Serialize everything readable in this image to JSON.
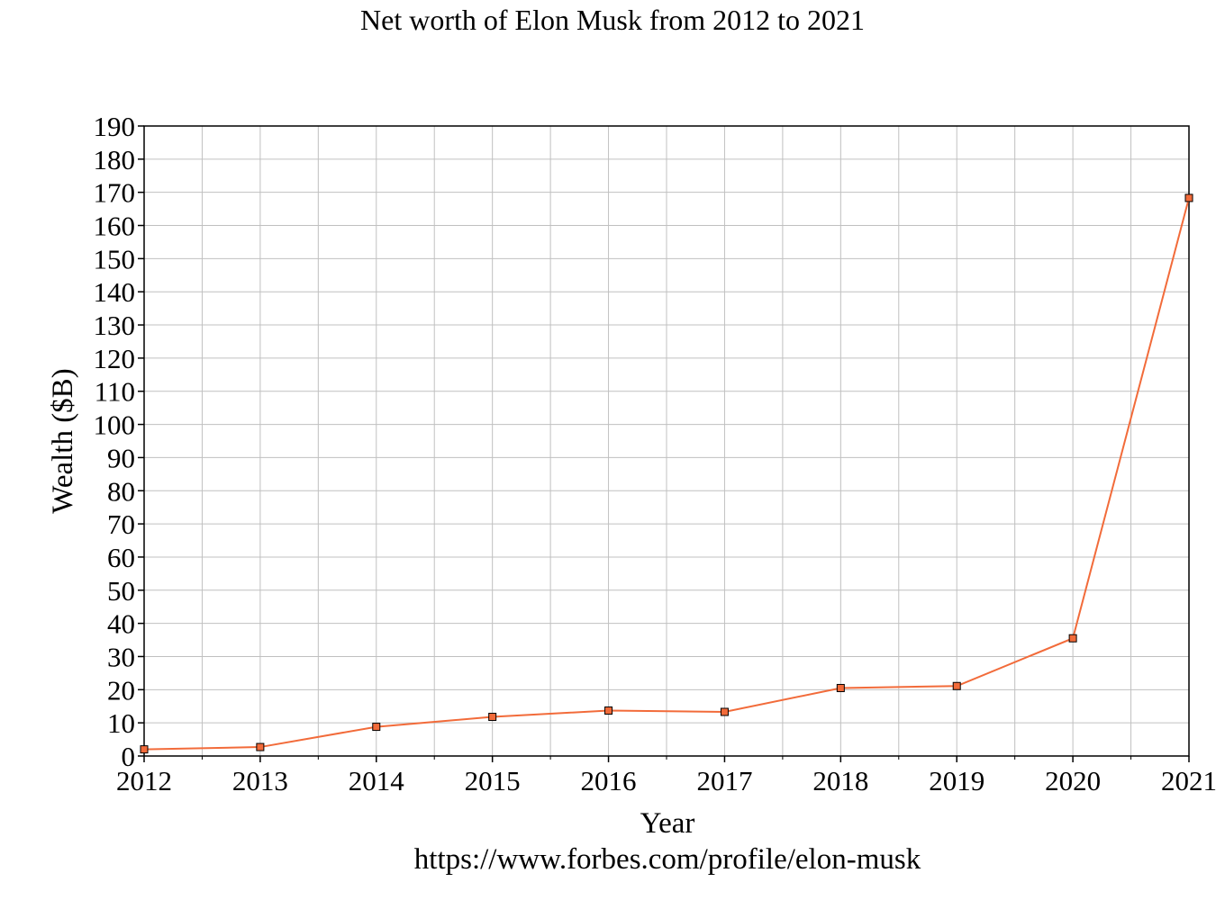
{
  "chart_data": {
    "type": "line",
    "title": "Net worth of Elon Musk from 2012 to 2021",
    "xlabel": "Year",
    "ylabel": "Wealth ($B)",
    "source": "https://www.forbes.com/profile/elon-musk",
    "x": [
      2012,
      2013,
      2014,
      2015,
      2016,
      2017,
      2018,
      2019,
      2020,
      2021
    ],
    "x_tick_labels": [
      "2012",
      "2013",
      "2014",
      "2015",
      "2016",
      "2017",
      "2018",
      "2019",
      "2020",
      "2021"
    ],
    "y_tick_labels": [
      "0",
      "10",
      "20",
      "30",
      "40",
      "50",
      "60",
      "70",
      "80",
      "90",
      "100",
      "110",
      "120",
      "130",
      "140",
      "150",
      "160",
      "170",
      "180",
      "190"
    ],
    "xlim": [
      2012,
      2021
    ],
    "ylim": [
      0,
      190
    ],
    "grid": true,
    "series": [
      {
        "values": [
          2,
          2.7,
          8.8,
          11.8,
          13.7,
          13.3,
          20.5,
          21.1,
          35.5,
          168.3
        ]
      }
    ],
    "colors": {
      "line": "#f26b3a",
      "marker_fill": "#f26b3a",
      "marker_stroke": "#000000",
      "grid": "#c0c0c0",
      "axis": "#000000"
    }
  }
}
